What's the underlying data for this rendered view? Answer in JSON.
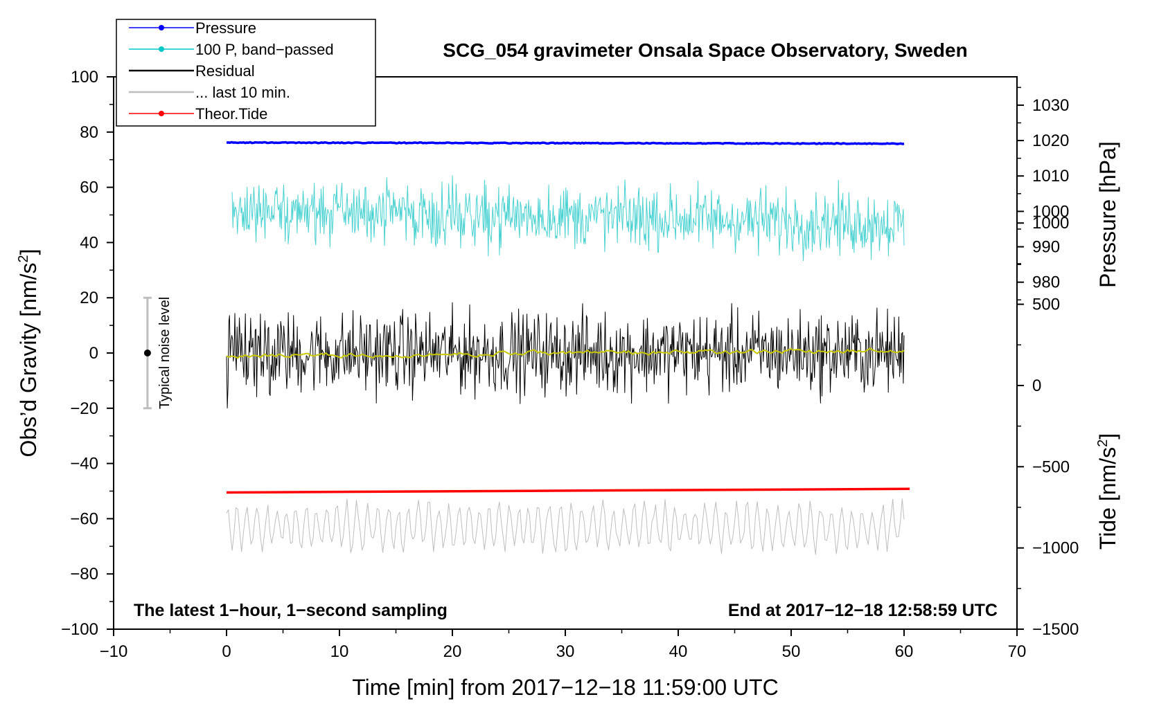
{
  "chart_data": {
    "type": "line",
    "title": "SCG_054 gravimeter Onsala Space Observatory, Sweden",
    "xlabel": "Time [min] from 2017−12−18 11:59:00 UTC",
    "ylabel_main": "Obs’d Gravity [nm/s",
    "ylabel_sup": "2",
    "ylabel_close": "]",
    "ylabel_pressure": "Pressure [hPa]",
    "ylabel_tide_main": "Tide [nm/s",
    "ylabel_tide_sup": "2",
    "ylabel_tide_close": "]",
    "xlim": [
      -10,
      70
    ],
    "ylim": [
      -100,
      100
    ],
    "x_ticks": [
      "−10",
      "0",
      "10",
      "20",
      "30",
      "40",
      "50",
      "60",
      "70"
    ],
    "y_ticks": [
      "−100",
      "−80",
      "−60",
      "−40",
      "−20",
      "0",
      "20",
      "40",
      "60",
      "80",
      "100"
    ],
    "pressure_ticks": [
      "980",
      "990",
      "1000",
      "1010",
      "1020",
      "1030"
    ],
    "tide_ticks": [
      "−1500",
      "−1000",
      "−500",
      "0",
      "500",
      "1000"
    ],
    "pressure_axis": {
      "value_at_gravity_0": 960,
      "hpa_per_gravity_unit": 0.78
    },
    "tide_axis": {
      "value_at_gravity_minus100": -1500,
      "nms2_per_gravity_unit": 17
    },
    "annotation_left": "The latest 1−hour, 1−second sampling",
    "annotation_right": "End at 2017−12−18 12:58:59 UTC",
    "noise_label": "Typical noise level",
    "noise_bar": {
      "x": -7,
      "center": 0,
      "low": -20,
      "high": 20
    },
    "legend": [
      {
        "label": "Pressure",
        "color": "#0000ff",
        "marker": true
      },
      {
        "label": "100 P, band−passed",
        "color": "#00c8c8",
        "marker": true
      },
      {
        "label": "Residual",
        "color": "#000000",
        "marker": false
      },
      {
        "label": "... last 10 min.",
        "color": "#bebebe",
        "marker": false
      },
      {
        "label": "Theor.Tide",
        "color": "#ff0000",
        "marker": true
      }
    ],
    "series": [
      {
        "name": "Pressure",
        "color": "#0000ff",
        "x_range": [
          0,
          60
        ],
        "start": 76.2,
        "end": 75.8,
        "amplitude": 0.3,
        "kind": "flat"
      },
      {
        "name": "100 P, band−passed",
        "color": "#48d1d1",
        "x_range": [
          0.5,
          60
        ],
        "start": 52,
        "end": 47,
        "amplitude": 7,
        "kind": "noise"
      },
      {
        "name": "Residual",
        "color": "#000000",
        "x_range": [
          0,
          60
        ],
        "start": 0,
        "end": 0,
        "amplitude": 9,
        "kind": "noise"
      },
      {
        "name": "Residual smoothed",
        "color": "#c8c800",
        "x_range": [
          0,
          60
        ],
        "start": -1,
        "end": 1,
        "amplitude": 1,
        "kind": "smooth"
      },
      {
        "name": "... last 10 min.",
        "color": "#bebebe",
        "x_range": [
          0,
          60
        ],
        "start": -63,
        "end": -63,
        "amplitude": 7,
        "kind": "oscillation"
      },
      {
        "name": "Theor.Tide",
        "color": "#ff0000",
        "x_range": [
          0,
          60.5
        ],
        "start": -50.5,
        "end": -49.2,
        "amplitude": 0,
        "kind": "trend"
      }
    ]
  }
}
